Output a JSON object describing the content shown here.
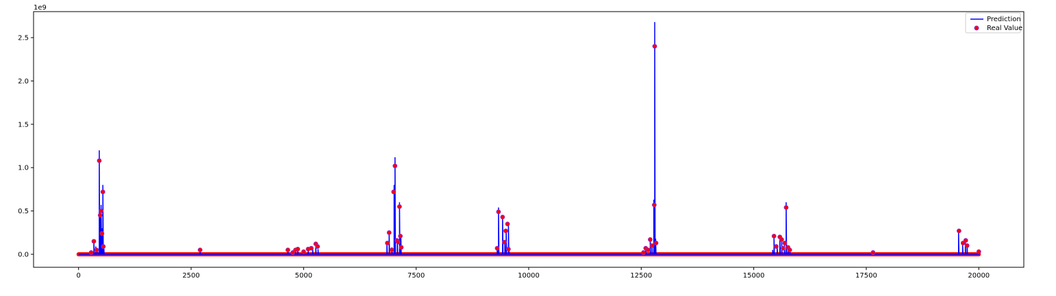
{
  "chart_data": {
    "type": "line",
    "title": "",
    "xlabel": "",
    "ylabel": "",
    "y_offset_label": "1e9",
    "xlim": [
      -1000,
      21000
    ],
    "ylim": [
      -0.15,
      2.8
    ],
    "x_ticks": [
      0,
      2500,
      5000,
      7500,
      10000,
      12500,
      15000,
      17500,
      20000
    ],
    "x_tick_labels": [
      "0",
      "2500",
      "5000",
      "7500",
      "10000",
      "12500",
      "15000",
      "17500",
      "20000"
    ],
    "y_ticks": [
      0.0,
      0.5,
      1.0,
      1.5,
      2.0,
      2.5
    ],
    "y_tick_labels": [
      "0.0",
      "0.5",
      "1.0",
      "1.5",
      "2.0",
      "2.5"
    ],
    "grid": false,
    "legend_position": "top-right",
    "x_range": [
      0,
      20000
    ],
    "series": [
      {
        "name": "Prediction",
        "kind": "line",
        "color": "#0000ff",
        "points": [
          [
            340,
            0.14
          ],
          [
            380,
            0.09
          ],
          [
            420,
            0.06
          ],
          [
            460,
            1.2
          ],
          [
            480,
            0.5
          ],
          [
            500,
            0.57
          ],
          [
            520,
            0.3
          ],
          [
            540,
            0.8
          ],
          [
            560,
            0.1
          ],
          [
            2700,
            0.04
          ],
          [
            4650,
            0.04
          ],
          [
            4820,
            0.05
          ],
          [
            4870,
            0.06
          ],
          [
            5100,
            0.06
          ],
          [
            5200,
            0.07
          ],
          [
            5270,
            0.1
          ],
          [
            5320,
            0.06
          ],
          [
            6850,
            0.13
          ],
          [
            6900,
            0.26
          ],
          [
            6960,
            0.08
          ],
          [
            7010,
            0.8
          ],
          [
            7030,
            1.12
          ],
          [
            7080,
            0.18
          ],
          [
            7130,
            0.6
          ],
          [
            7160,
            0.22
          ],
          [
            9300,
            0.08
          ],
          [
            9330,
            0.54
          ],
          [
            9420,
            0.45
          ],
          [
            9470,
            0.14
          ],
          [
            9500,
            0.28
          ],
          [
            9550,
            0.35
          ],
          [
            9560,
            0.07
          ],
          [
            12600,
            0.08
          ],
          [
            12700,
            0.17
          ],
          [
            12740,
            0.1
          ],
          [
            12780,
            0.63
          ],
          [
            12800,
            2.68
          ],
          [
            12820,
            0.18
          ],
          [
            15420,
            0.05
          ],
          [
            15450,
            0.21
          ],
          [
            15520,
            0.08
          ],
          [
            15580,
            0.2
          ],
          [
            15620,
            0.17
          ],
          [
            15680,
            0.12
          ],
          [
            15720,
            0.6
          ],
          [
            15760,
            0.07
          ],
          [
            15800,
            0.05
          ],
          [
            17650,
            0.02
          ],
          [
            19550,
            0.28
          ],
          [
            19640,
            0.12
          ],
          [
            19700,
            0.15
          ],
          [
            19740,
            0.11
          ],
          [
            20000,
            0.02
          ]
        ]
      },
      {
        "name": "Real Value",
        "kind": "scatter",
        "color": "#ff0000",
        "edge_color": "#8a2be2",
        "points": [
          [
            280,
            0.02
          ],
          [
            340,
            0.15
          ],
          [
            400,
            0.05
          ],
          [
            460,
            1.08
          ],
          [
            480,
            0.45
          ],
          [
            500,
            0.5
          ],
          [
            520,
            0.24
          ],
          [
            540,
            0.72
          ],
          [
            550,
            0.09
          ],
          [
            2700,
            0.05
          ],
          [
            4650,
            0.05
          ],
          [
            4760,
            0.02
          ],
          [
            4820,
            0.05
          ],
          [
            4870,
            0.06
          ],
          [
            5000,
            0.03
          ],
          [
            5100,
            0.06
          ],
          [
            5170,
            0.07
          ],
          [
            5270,
            0.12
          ],
          [
            5310,
            0.09
          ],
          [
            6860,
            0.13
          ],
          [
            6900,
            0.25
          ],
          [
            6960,
            0.05
          ],
          [
            7000,
            0.72
          ],
          [
            7030,
            1.02
          ],
          [
            7070,
            0.16
          ],
          [
            7100,
            0.14
          ],
          [
            7130,
            0.55
          ],
          [
            7150,
            0.21
          ],
          [
            7170,
            0.08
          ],
          [
            9300,
            0.07
          ],
          [
            9330,
            0.49
          ],
          [
            9420,
            0.43
          ],
          [
            9460,
            0.14
          ],
          [
            9490,
            0.27
          ],
          [
            9530,
            0.35
          ],
          [
            9550,
            0.06
          ],
          [
            12550,
            0.02
          ],
          [
            12600,
            0.07
          ],
          [
            12650,
            0.05
          ],
          [
            12700,
            0.17
          ],
          [
            12740,
            0.1
          ],
          [
            12790,
            0.57
          ],
          [
            12800,
            2.4
          ],
          [
            12830,
            0.13
          ],
          [
            15450,
            0.21
          ],
          [
            15500,
            0.09
          ],
          [
            15580,
            0.2
          ],
          [
            15620,
            0.17
          ],
          [
            15650,
            0.07
          ],
          [
            15690,
            0.13
          ],
          [
            15720,
            0.54
          ],
          [
            15760,
            0.08
          ],
          [
            15800,
            0.05
          ],
          [
            17650,
            0.02
          ],
          [
            19560,
            0.27
          ],
          [
            19650,
            0.13
          ],
          [
            19710,
            0.16
          ],
          [
            19740,
            0.1
          ],
          [
            20000,
            0.03
          ]
        ]
      }
    ],
    "baseline": {
      "value": 0.0,
      "color": "#ff0000"
    }
  }
}
